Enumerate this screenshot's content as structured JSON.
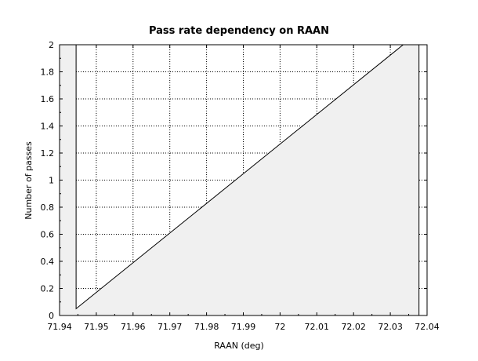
{
  "chart_data": {
    "type": "area",
    "title": "Pass rate dependency on RAAN",
    "xlabel": "RAAN (deg)",
    "ylabel": "Number of passes",
    "xlim": [
      71.94,
      72.04
    ],
    "ylim": [
      0,
      2
    ],
    "x_ticks": [
      "71.94",
      "71.95",
      "71.96",
      "71.97",
      "71.98",
      "71.99",
      "72",
      "72.01",
      "72.02",
      "72.03",
      "72.04"
    ],
    "x_tick_values": [
      71.94,
      71.95,
      71.96,
      71.97,
      71.98,
      71.99,
      72.0,
      72.01,
      72.02,
      72.03,
      72.04
    ],
    "y_ticks": [
      "0",
      "0.2",
      "0.4",
      "0.6",
      "0.8",
      "1",
      "1.2",
      "1.4",
      "1.6",
      "1.8",
      "2"
    ],
    "y_tick_values": [
      0,
      0.2,
      0.4,
      0.6,
      0.8,
      1.0,
      1.2,
      1.4,
      1.6,
      1.8,
      2.0
    ],
    "grid": true,
    "fill_color": "#f0f0f0",
    "line_color": "#000000",
    "series": [
      {
        "x": [
          71.94,
          71.9445,
          71.9445,
          72.0335,
          72.0335,
          72.0378,
          72.0378,
          72.04
        ],
        "y": [
          2,
          2,
          0.05,
          2,
          2,
          2,
          0,
          0
        ]
      }
    ]
  }
}
